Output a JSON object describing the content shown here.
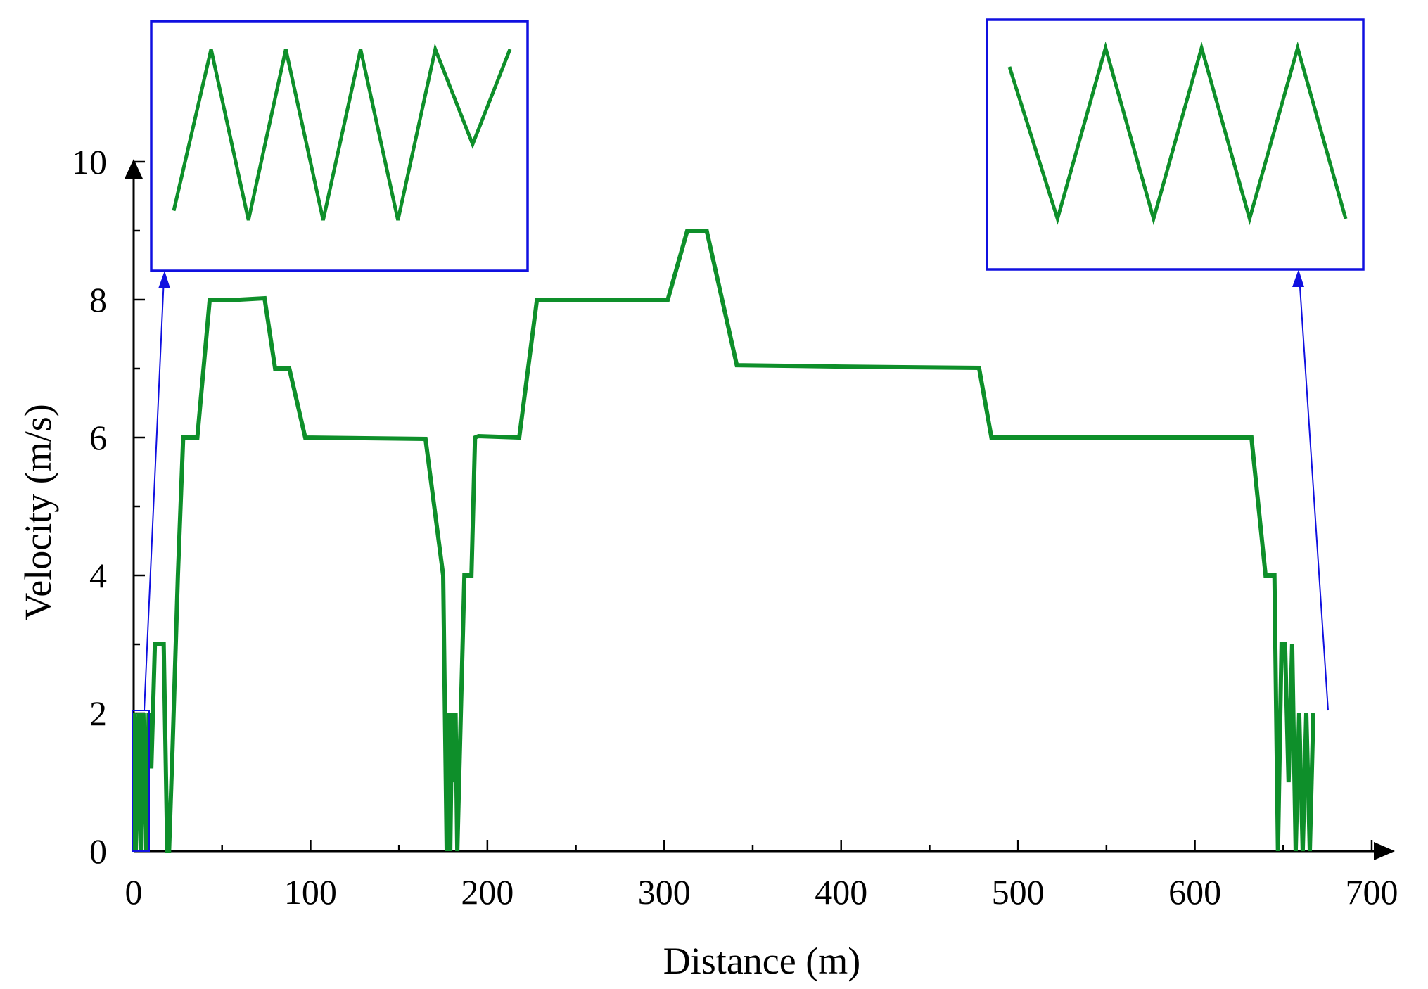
{
  "chart_data": {
    "type": "line",
    "xlabel": "Distance (m)",
    "ylabel": "Velocity (m/s)",
    "xlim": [
      0,
      700
    ],
    "ylim": [
      0,
      10
    ],
    "xticks": [
      "0",
      "100",
      "200",
      "300",
      "400",
      "500",
      "600",
      "700"
    ],
    "yticks": [
      "0",
      "2",
      "4",
      "6",
      "8",
      "10"
    ],
    "xtick_values": [
      0,
      100,
      200,
      300,
      400,
      500,
      600,
      700
    ],
    "ytick_values": [
      0,
      2,
      4,
      6,
      8,
      10
    ],
    "grid": false,
    "colors": {
      "series": "#0e8f2a",
      "inset": "#1010e0",
      "axis": "#000000"
    },
    "series": [
      {
        "x": [
          0,
          0.5,
          1.2,
          3,
          4,
          5.5,
          7,
          8.5,
          10,
          12,
          14,
          17,
          19,
          20,
          22,
          25,
          28,
          36,
          43,
          60,
          74,
          80,
          88,
          97,
          165,
          175,
          177,
          178,
          179,
          180,
          181,
          182,
          183,
          185,
          187,
          189,
          191,
          193,
          195,
          218,
          228,
          302,
          313,
          324,
          341,
          400,
          478,
          485,
          632,
          640,
          645,
          647,
          649,
          651,
          653,
          655,
          657,
          659,
          661,
          663,
          665,
          667
        ],
        "y": [
          0,
          2,
          0,
          2,
          0,
          2,
          0,
          2,
          1.2,
          3,
          3,
          3,
          0,
          0,
          1.5,
          4,
          6,
          6,
          8,
          8,
          8.02,
          7,
          7,
          6,
          5.98,
          4,
          0,
          2,
          0,
          2,
          1,
          2,
          0,
          2,
          4,
          4,
          4,
          6,
          6.02,
          6,
          8,
          8,
          9,
          9,
          7.05,
          7.03,
          7.01,
          6,
          6,
          4,
          4,
          0,
          3,
          3,
          1,
          3,
          0,
          2,
          0,
          2,
          0,
          2
        ]
      }
    ],
    "insets": [
      {
        "position": "top-left",
        "zoom_of": "start segment",
        "values": [
          0.15,
          1.0,
          0.1,
          1.0,
          0.1,
          1.0,
          0.1,
          1.0,
          0.5,
          1.0
        ]
      },
      {
        "position": "top-right",
        "zoom_of": "end segment",
        "values": [
          0.9,
          0.1,
          1.0,
          0.1,
          1.0,
          0.1,
          1.0,
          0.1
        ]
      }
    ]
  }
}
